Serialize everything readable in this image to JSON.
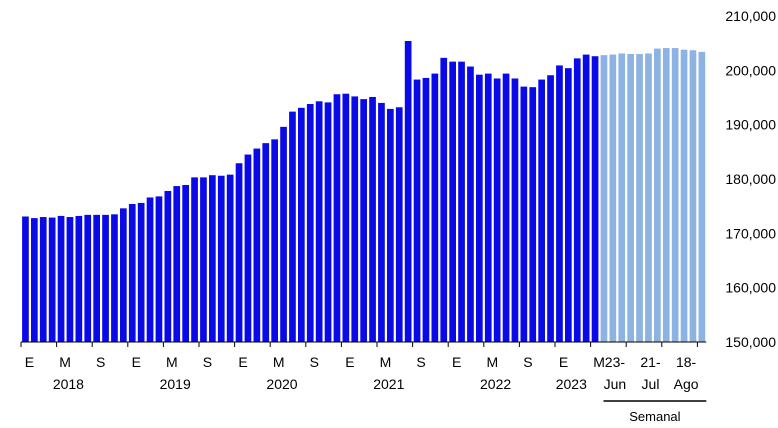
{
  "chart_data": {
    "type": "bar",
    "title": "",
    "xlabel": "",
    "ylabel": "",
    "ylim": [
      150000,
      210000
    ],
    "y_ticks": [
      "150,000",
      "160,000",
      "170,000",
      "180,000",
      "190,000",
      "200,000",
      "210,000"
    ],
    "y_tick_values": [
      150000,
      160000,
      170000,
      180000,
      190000,
      200000,
      210000
    ],
    "grid": false,
    "legend": "none",
    "colors": {
      "monthly": "#0a0ae6",
      "weekly": "#8db3e2"
    },
    "monthly": {
      "start": "2018-01",
      "values": [
        173100,
        172800,
        173000,
        172900,
        173200,
        173000,
        173200,
        173400,
        173400,
        173400,
        173500,
        174600,
        175400,
        175600,
        176600,
        176800,
        177800,
        178700,
        178900,
        180300,
        180300,
        180700,
        180600,
        180800,
        182900,
        184500,
        185600,
        186600,
        187300,
        189600,
        192400,
        193100,
        193800,
        194300,
        194100,
        195600,
        195700,
        195200,
        194700,
        195100,
        194000,
        192900,
        193200,
        205400,
        198300,
        198600,
        199400,
        202300,
        201600,
        201600,
        200700,
        199200,
        199400,
        198500,
        199400,
        198500,
        197000,
        196900,
        198300,
        199100,
        200900,
        200400,
        202200,
        202900,
        202600
      ]
    },
    "month_tick_labels": [
      "E",
      "M",
      "S",
      "E",
      "M",
      "S",
      "E",
      "M",
      "S",
      "E",
      "M",
      "S",
      "E",
      "M",
      "S",
      "E",
      "M"
    ],
    "year_labels": [
      "2018",
      "2019",
      "2020",
      "2021",
      "2022",
      "2023"
    ],
    "weekly": {
      "caption": "Semanal",
      "values": [
        202800,
        202900,
        203100,
        203000,
        203000,
        203100,
        204000,
        204100,
        204100,
        203800,
        203700,
        203400
      ],
      "tick_labels": [
        {
          "top": "23-",
          "bottom": "Jun"
        },
        {
          "top": "21-",
          "bottom": "Jul"
        },
        {
          "top": "18-",
          "bottom": "Ago"
        }
      ]
    }
  }
}
